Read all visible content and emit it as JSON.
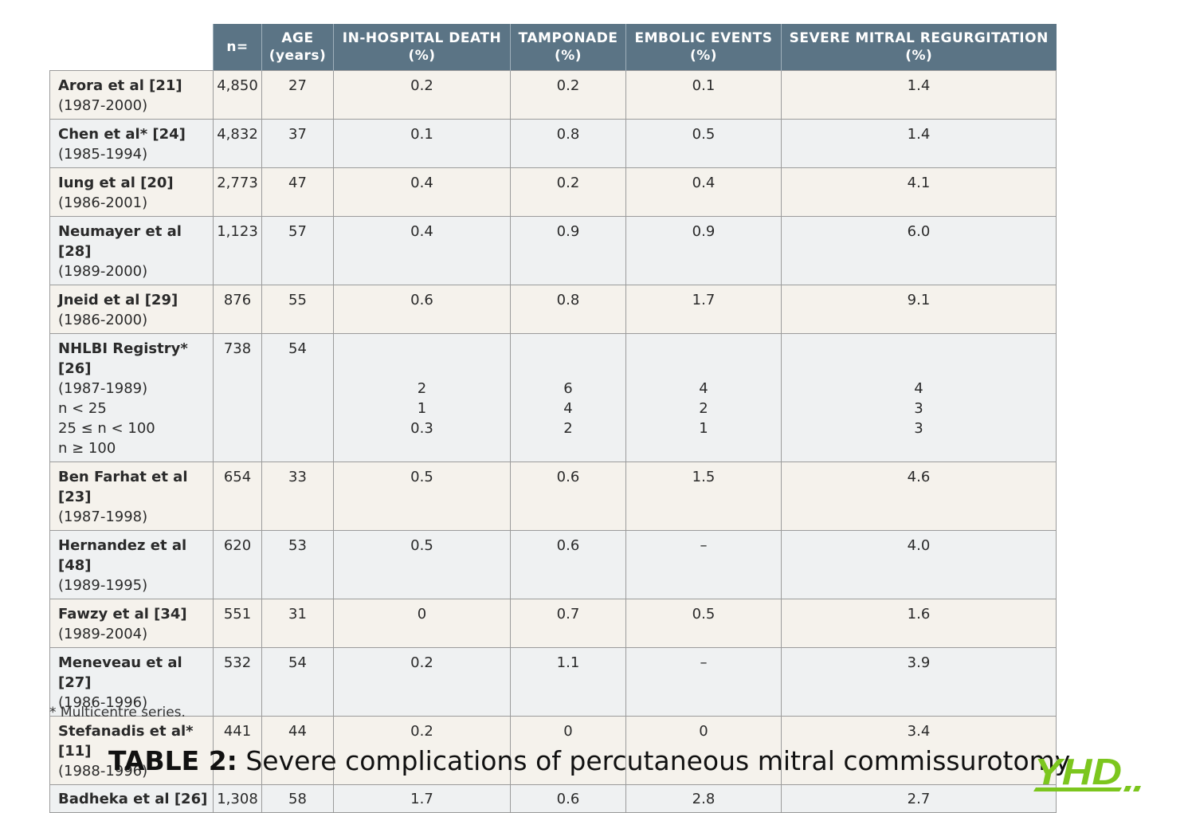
{
  "headers": {
    "n": "n=",
    "age": [
      "AGE",
      "(years)"
    ],
    "death": [
      "IN-HOSPITAL DEATH",
      "(%)"
    ],
    "tamponade": [
      "TAMPONADE",
      "(%)"
    ],
    "embolic": [
      "EMBOLIC EVENTS",
      "(%)"
    ],
    "mitral": [
      "SEVERE MITRAL REGURGITATION",
      "(%)"
    ]
  },
  "rows": [
    {
      "name": "Arora et al [21]",
      "years": "(1987-2000)",
      "n": "4,850",
      "age": "27",
      "death": "0.2",
      "tamponade": "0.2",
      "embolic": "0.1",
      "mitral": "1.4"
    },
    {
      "name": "Chen et al* [24]",
      "years": "(1985-1994)",
      "n": "4,832",
      "age": "37",
      "death": "0.1",
      "tamponade": "0.8",
      "embolic": "0.5",
      "mitral": "1.4"
    },
    {
      "name": "Iung et al [20]",
      "years": "(1986-2001)",
      "n": "2,773",
      "age": "47",
      "death": "0.4",
      "tamponade": "0.2",
      "embolic": "0.4",
      "mitral": "4.1"
    },
    {
      "name": "Neumayer et al [28]",
      "years": "(1989-2000)",
      "n": "1,123",
      "age": "57",
      "death": "0.4",
      "tamponade": "0.9",
      "embolic": "0.9",
      "mitral": "6.0"
    },
    {
      "name": "Jneid et al [29]",
      "years": "(1986-2000)",
      "n": "876",
      "age": "55",
      "death": "0.6",
      "tamponade": "0.8",
      "embolic": "1.7",
      "mitral": "9.1"
    }
  ],
  "nhlbi": {
    "name": "NHLBI Registry* [26]",
    "years": "(1987-1989)",
    "n": "738",
    "age": "54",
    "subgroups": [
      "n < 25",
      "25 ≤ n < 100",
      "n ≥ 100"
    ],
    "death": [
      "2",
      "1",
      "0.3"
    ],
    "tamponade": [
      "6",
      "4",
      "2"
    ],
    "embolic": [
      "4",
      "2",
      "1"
    ],
    "mitral": [
      "4",
      "3",
      "3"
    ]
  },
  "rows2": [
    {
      "name": "Ben Farhat et al [23]",
      "years": "(1987-1998)",
      "n": "654",
      "age": "33",
      "death": "0.5",
      "tamponade": "0.6",
      "embolic": "1.5",
      "mitral": "4.6"
    },
    {
      "name": "Hernandez et al [48]",
      "years": "(1989-1995)",
      "n": "620",
      "age": "53",
      "death": "0.5",
      "tamponade": "0.6",
      "embolic": "–",
      "mitral": "4.0"
    },
    {
      "name": "Fawzy et al [34]",
      "years": "(1989-2004)",
      "n": "551",
      "age": "31",
      "death": "0",
      "tamponade": "0.7",
      "embolic": "0.5",
      "mitral": "1.6"
    },
    {
      "name": "Meneveau et al [27]",
      "years": "(1986-1996)",
      "n": "532",
      "age": "54",
      "death": "0.2",
      "tamponade": "1.1",
      "embolic": "–",
      "mitral": "3.9"
    },
    {
      "name": "Stefanadis et al* [11]",
      "years": "(1988-1996)",
      "n": "441",
      "age": "44",
      "death": "0.2",
      "tamponade": "0",
      "embolic": "0",
      "mitral": "3.4"
    }
  ],
  "last": {
    "name": "Badheka et al [26]",
    "n": "1,308",
    "age": "58",
    "death": "1.7",
    "tamponade": "0.6",
    "embolic": "2.8",
    "mitral": "2.7"
  },
  "footnote": "* Multicentre series.",
  "caption": {
    "label": "TABLE 2:",
    "text": " Severe complications of percutaneous mitral commissurotomy"
  },
  "logo": {
    "text": "YHD",
    "color": "#7cc61e"
  }
}
